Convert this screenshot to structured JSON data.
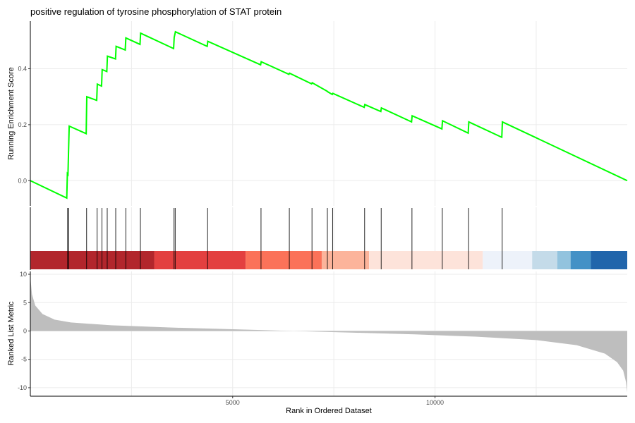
{
  "chart_data": {
    "type": "line",
    "title": "positive regulation of tyrosine phosphorylation of STAT protein",
    "xlabel": "Rank in Ordered Dataset",
    "xlim": [
      0,
      14750
    ],
    "x_ticks": [
      "5000",
      "10000"
    ],
    "grid": true,
    "colors": {
      "es_line": "#00ff00",
      "hit_line": "#000000",
      "metric_fill": "#bebebe",
      "axis": "#000000",
      "grid": "#ebebeb"
    },
    "running_enrichment": {
      "ylabel": "Running Enrichment Score",
      "ylim": [
        -0.09,
        0.57
      ],
      "y_ticks": [
        "0.0",
        "0.2",
        "0.4"
      ],
      "points": [
        [
          0,
          0.0
        ],
        [
          900,
          -0.062
        ],
        [
          915,
          0.025
        ],
        [
          930,
          0.022
        ],
        [
          945,
          0.11
        ],
        [
          960,
          0.195
        ],
        [
          1380,
          0.168
        ],
        [
          1395,
          0.3
        ],
        [
          1640,
          0.287
        ],
        [
          1655,
          0.345
        ],
        [
          1760,
          0.338
        ],
        [
          1775,
          0.397
        ],
        [
          1890,
          0.39
        ],
        [
          1905,
          0.445
        ],
        [
          2105,
          0.435
        ],
        [
          2120,
          0.48
        ],
        [
          2345,
          0.467
        ],
        [
          2360,
          0.51
        ],
        [
          2710,
          0.487
        ],
        [
          2725,
          0.527
        ],
        [
          3540,
          0.472
        ],
        [
          3555,
          0.512
        ],
        [
          3570,
          0.522
        ],
        [
          3585,
          0.532
        ],
        [
          4370,
          0.48
        ],
        [
          4385,
          0.498
        ],
        [
          5690,
          0.414
        ],
        [
          5705,
          0.425
        ],
        [
          6390,
          0.38
        ],
        [
          6405,
          0.384
        ],
        [
          6950,
          0.346
        ],
        [
          6965,
          0.35
        ],
        [
          7330,
          0.32
        ],
        [
          7345,
          0.318
        ],
        [
          7460,
          0.308
        ],
        [
          7475,
          0.312
        ],
        [
          8250,
          0.262
        ],
        [
          8265,
          0.272
        ],
        [
          8660,
          0.247
        ],
        [
          8675,
          0.26
        ],
        [
          9420,
          0.21
        ],
        [
          9435,
          0.232
        ],
        [
          10170,
          0.185
        ],
        [
          10185,
          0.214
        ],
        [
          10820,
          0.17
        ],
        [
          10835,
          0.21
        ],
        [
          11650,
          0.155
        ],
        [
          11665,
          0.21
        ],
        [
          14750,
          0.0
        ]
      ]
    },
    "gene_hits": {
      "x": [
        920,
        950,
        1390,
        1650,
        1770,
        1900,
        2110,
        2360,
        2720,
        3550,
        3580,
        4380,
        5700,
        6400,
        6960,
        7340,
        7470,
        8260,
        8670,
        9430,
        10180,
        10830,
        11660
      ]
    },
    "rank_color_bands": {
      "segments": [
        {
          "start": 0,
          "end": 3060,
          "color": "#b2262c"
        },
        {
          "start": 3060,
          "end": 5320,
          "color": "#e34040"
        },
        {
          "start": 5320,
          "end": 7200,
          "color": "#fb7259"
        },
        {
          "start": 7200,
          "end": 8370,
          "color": "#fcb49b"
        },
        {
          "start": 8370,
          "end": 11180,
          "color": "#fde3da"
        },
        {
          "start": 11180,
          "end": 12400,
          "color": "#edf2fa"
        },
        {
          "start": 12400,
          "end": 13020,
          "color": "#c4dbe9"
        },
        {
          "start": 13020,
          "end": 13350,
          "color": "#92c3de"
        },
        {
          "start": 13350,
          "end": 13850,
          "color": "#4491c6"
        },
        {
          "start": 13850,
          "end": 14750,
          "color": "#2165ab"
        }
      ]
    },
    "ranked_list_metric": {
      "ylabel": "Ranked List Metric",
      "ylim": [
        -11.5,
        10.5
      ],
      "y_ticks": [
        "10",
        "5",
        "0",
        "-5",
        "-10"
      ],
      "points": [
        [
          0,
          9.5
        ],
        [
          40,
          6.5
        ],
        [
          120,
          4.5
        ],
        [
          300,
          3.0
        ],
        [
          600,
          2.0
        ],
        [
          1000,
          1.5
        ],
        [
          2000,
          1.0
        ],
        [
          3500,
          0.6
        ],
        [
          5000,
          0.3
        ],
        [
          6500,
          0.0
        ],
        [
          8000,
          -0.3
        ],
        [
          9500,
          -0.6
        ],
        [
          11000,
          -1.0
        ],
        [
          12500,
          -1.6
        ],
        [
          13500,
          -2.5
        ],
        [
          14200,
          -4.0
        ],
        [
          14500,
          -5.5
        ],
        [
          14650,
          -7.0
        ],
        [
          14720,
          -9.0
        ],
        [
          14750,
          -10.8
        ]
      ]
    }
  }
}
